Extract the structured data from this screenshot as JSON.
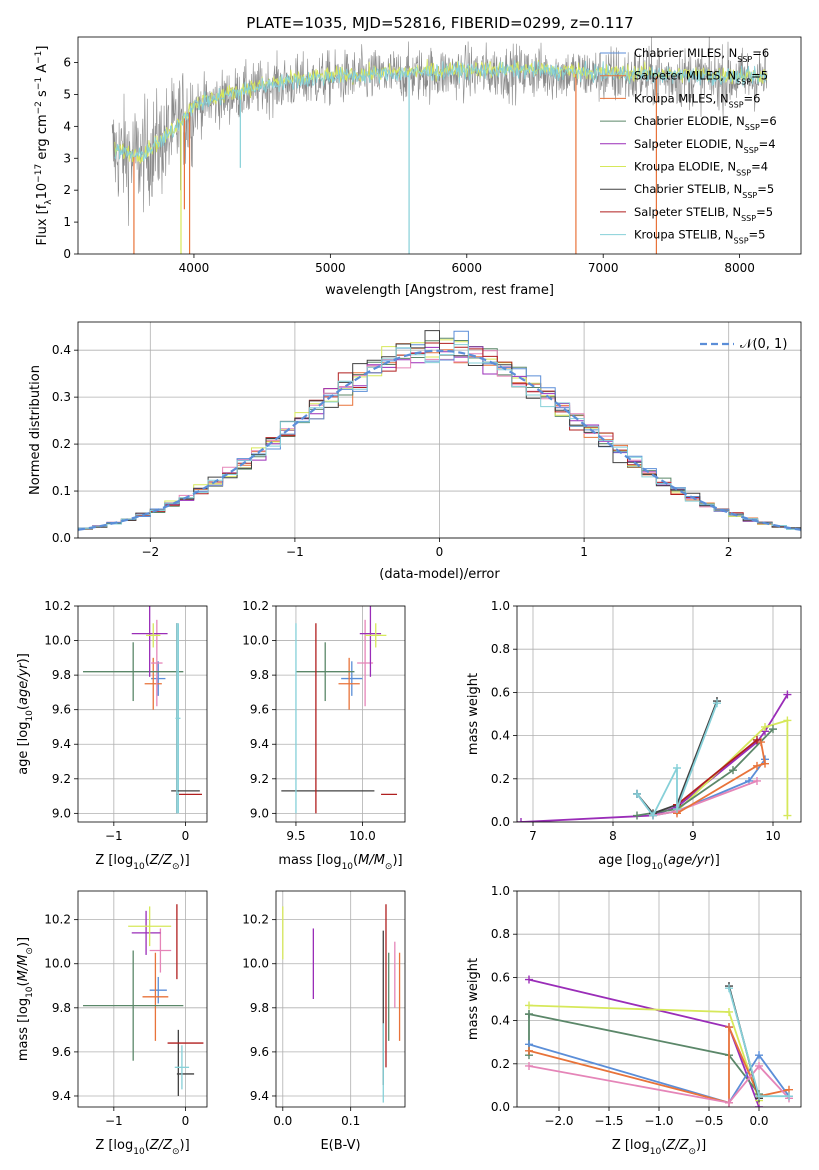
{
  "title": "PLATE=1035, MJD=52816, FIBERID=0299, z=0.117",
  "colors": {
    "chabrier_miles": "#5b8ed8",
    "salpeter_miles": "#e8733a",
    "kroupa_miles": "#e8733a",
    "chabrier_elodie": "#5b8769",
    "salpeter_elodie": "#9a2db8",
    "kroupa_elodie": "#d6e85a",
    "chabrier_stelib": "#404040",
    "salpeter_stelib": "#b01f1f",
    "kroupa_stelib": "#86d0d8",
    "pink": "#e585b8",
    "spectrum": "#8a8a8a",
    "normal": "#5b8ed8"
  },
  "chart_data": [
    {
      "id": "spectrum",
      "type": "line",
      "xlabel": "wavelength [Angstrom, rest frame]",
      "ylabel": "Flux [f_λ 10^-17 erg cm^-2 s^-1 A^-1]",
      "xlim": [
        3150,
        8450
      ],
      "ylim": [
        0,
        6.8
      ],
      "xticks": [
        4000,
        5000,
        6000,
        7000,
        8000
      ],
      "yticks": [
        0,
        1,
        2,
        3,
        4,
        5,
        6
      ],
      "legend_position": "top-right",
      "legend": [
        {
          "label": "Chabrier MILES, N_SSP=6",
          "color": "#5b8ed8"
        },
        {
          "label": "Salpeter MILES, N_SSP=5",
          "color": "#e8733a"
        },
        {
          "label": "Kroupa MILES, N_SSP=6",
          "color": "#e8733a"
        },
        {
          "label": "Chabrier ELODIE, N_SSP=6",
          "color": "#5b8769"
        },
        {
          "label": "Salpeter ELODIE, N_SSP=4",
          "color": "#9a2db8"
        },
        {
          "label": "Kroupa ELODIE, N_SSP=4",
          "color": "#d6e85a"
        },
        {
          "label": "Chabrier STELIB, N_SSP=5",
          "color": "#404040"
        },
        {
          "label": "Salpeter STELIB, N_SSP=5",
          "color": "#b01f1f"
        },
        {
          "label": "Kroupa STELIB, N_SSP=5",
          "color": "#86d0d8"
        }
      ],
      "continuum_x": [
        3400,
        3600,
        3800,
        4000,
        4300,
        4600,
        5000,
        5500,
        6000,
        6500,
        7000,
        7500,
        8000,
        8200
      ],
      "continuum_y": [
        3.2,
        3.0,
        3.6,
        4.6,
        5.0,
        5.3,
        5.5,
        5.6,
        5.7,
        5.7,
        5.6,
        5.55,
        5.5,
        5.5
      ],
      "dips": [
        {
          "x": 3560,
          "y": 0
        },
        {
          "x": 3905,
          "y": 0
        },
        {
          "x": 3930,
          "y": 1.4
        },
        {
          "x": 3968,
          "y": 0
        },
        {
          "x": 4340,
          "y": 2.7
        },
        {
          "x": 5577,
          "y": 0
        },
        {
          "x": 6800,
          "y": 0
        },
        {
          "x": 7390,
          "y": 0
        }
      ]
    },
    {
      "id": "residuals",
      "type": "histogram",
      "xlabel": "(data-model)/error",
      "ylabel": "Normed distribution",
      "xlim": [
        -2.5,
        2.5
      ],
      "ylim": [
        0,
        0.46
      ],
      "xticks": [
        -2,
        -1,
        0,
        1,
        2
      ],
      "yticks": [
        0.0,
        0.1,
        0.2,
        0.3,
        0.4
      ],
      "grid": true,
      "legend_position": "top-right",
      "normal_label": "𝒩(0, 1)",
      "bin_width": 0.1
    },
    {
      "id": "z_age",
      "type": "errorbar",
      "xlabel": "Z [log10(Z/Z⊙)]",
      "ylabel": "age [log10(age/yr)]",
      "xlim": [
        -1.5,
        0.3
      ],
      "ylim": [
        8.95,
        10.2
      ],
      "xticks": [
        -1,
        0
      ],
      "yticks": [
        9.0,
        9.2,
        9.4,
        9.6,
        9.8,
        10.0,
        10.2
      ],
      "grid": true,
      "points": [
        {
          "x": -0.38,
          "xerr": 0.1,
          "y": 9.78,
          "yerr": 0.1,
          "color": "#5b8ed8"
        },
        {
          "x": -0.45,
          "xerr": 0.12,
          "y": 9.75,
          "yerr": 0.15,
          "color": "#e8733a"
        },
        {
          "x": -0.4,
          "xerr": 0.08,
          "y": 9.87,
          "yerr": 0.25,
          "color": "#e585b8"
        },
        {
          "x": -0.73,
          "xerr": 0.7,
          "y": 9.82,
          "yerr": 0.17,
          "color": "#5b8769"
        },
        {
          "x": -0.5,
          "xerr": 0.25,
          "y": 10.04,
          "yerr": 0.25,
          "color": "#9a2db8"
        },
        {
          "x": -0.45,
          "xerr": 0.1,
          "y": 10.03,
          "yerr": 0.07,
          "color": "#d6e85a"
        },
        {
          "x": -0.12,
          "xerr": 0.0,
          "y": 9.55,
          "yerr": 0.55,
          "color": "#404040"
        },
        {
          "x": 0.05,
          "xerr": 0.18,
          "y": 9.11,
          "yerr": 0.0,
          "color": "#b01f1f"
        },
        {
          "x": -0.1,
          "xerr": 0.03,
          "y": 9.55,
          "yerr": 0.55,
          "color": "#86d0d8"
        },
        {
          "x": 0.0,
          "xerr": 0.2,
          "y": 9.13,
          "yerr": 0.0,
          "color": "#404040"
        },
        {
          "x": -0.12,
          "xerr": 0.02,
          "y": 9.55,
          "yerr": 0.55,
          "color": "#86d0d8"
        }
      ]
    },
    {
      "id": "mass_age",
      "type": "errorbar",
      "xlabel": "mass [log10(M/M⊙)]",
      "ylabel": "",
      "xlim": [
        9.35,
        10.32
      ],
      "ylim": [
        8.95,
        10.2
      ],
      "xticks": [
        9.5,
        10.0
      ],
      "yticks": [
        9.0,
        9.2,
        9.4,
        9.6,
        9.8,
        10.0,
        10.2
      ],
      "grid": true,
      "points": [
        {
          "x": 9.92,
          "xerr": 0.08,
          "y": 9.78,
          "yerr": 0.1,
          "color": "#5b8ed8"
        },
        {
          "x": 9.9,
          "xerr": 0.08,
          "y": 9.75,
          "yerr": 0.15,
          "color": "#e8733a"
        },
        {
          "x": 10.02,
          "xerr": 0.06,
          "y": 9.87,
          "yerr": 0.25,
          "color": "#e585b8"
        },
        {
          "x": 9.72,
          "xerr": 0.22,
          "y": 9.82,
          "yerr": 0.17,
          "color": "#5b8769"
        },
        {
          "x": 10.06,
          "xerr": 0.08,
          "y": 10.04,
          "yerr": 0.25,
          "color": "#9a2db8"
        },
        {
          "x": 10.1,
          "xerr": 0.08,
          "y": 10.03,
          "yerr": 0.07,
          "color": "#d6e85a"
        },
        {
          "x": 9.74,
          "xerr": 0.35,
          "y": 9.13,
          "yerr": 0.0,
          "color": "#404040"
        },
        {
          "x": 9.65,
          "xerr": 0.0,
          "y": 9.55,
          "yerr": 0.55,
          "color": "#b01f1f"
        },
        {
          "x": 9.5,
          "xerr": 0.0,
          "y": 9.55,
          "yerr": 0.55,
          "color": "#86d0d8"
        },
        {
          "x": 10.2,
          "xerr": 0.06,
          "y": 9.11,
          "yerr": 0.0,
          "color": "#b01f1f"
        }
      ]
    },
    {
      "id": "age_weight",
      "type": "line",
      "xlabel": "age [log10(age/yr)]",
      "ylabel": "mass weight",
      "xlim": [
        6.8,
        10.35
      ],
      "ylim": [
        0,
        1.0
      ],
      "xticks": [
        7,
        8,
        9,
        10
      ],
      "yticks": [
        0.0,
        0.2,
        0.4,
        0.6,
        0.8,
        1.0
      ],
      "grid": true,
      "series": [
        {
          "color": "#9a2db8",
          "points": [
            [
              6.85,
              0.0
            ],
            [
              8.5,
              0.03
            ],
            [
              8.8,
              0.07
            ],
            [
              9.8,
              0.37
            ],
            [
              9.9,
              0.42
            ],
            [
              10.18,
              0.59
            ]
          ]
        },
        {
          "color": "#d6e85a",
          "points": [
            [
              8.5,
              0.03
            ],
            [
              8.8,
              0.05
            ],
            [
              9.9,
              0.44
            ],
            [
              10.18,
              0.47
            ],
            [
              10.18,
              0.03
            ]
          ]
        },
        {
          "color": "#5b8769",
          "points": [
            [
              8.3,
              0.03
            ],
            [
              8.8,
              0.06
            ],
            [
              9.5,
              0.24
            ],
            [
              10.0,
              0.43
            ]
          ]
        },
        {
          "color": "#5b8ed8",
          "points": [
            [
              8.3,
              0.13
            ],
            [
              8.5,
              0.03
            ],
            [
              8.8,
              0.05
            ],
            [
              9.7,
              0.19
            ],
            [
              9.9,
              0.29
            ]
          ]
        },
        {
          "color": "#e585b8",
          "points": [
            [
              8.5,
              0.03
            ],
            [
              8.8,
              0.05
            ],
            [
              9.8,
              0.19
            ]
          ]
        },
        {
          "color": "#e8733a",
          "points": [
            [
              8.8,
              0.04
            ],
            [
              9.8,
              0.26
            ],
            [
              9.9,
              0.27
            ],
            [
              9.85,
              0.37
            ]
          ]
        },
        {
          "color": "#404040",
          "points": [
            [
              8.3,
              0.13
            ],
            [
              8.5,
              0.04
            ],
            [
              8.8,
              0.08
            ],
            [
              9.3,
              0.56
            ]
          ]
        },
        {
          "color": "#b01f1f",
          "points": [
            [
              8.8,
              0.08
            ],
            [
              9.8,
              0.38
            ]
          ]
        },
        {
          "color": "#86d0d8",
          "points": [
            [
              8.3,
              0.13
            ],
            [
              8.5,
              0.03
            ],
            [
              8.8,
              0.25
            ],
            [
              8.8,
              0.06
            ],
            [
              9.3,
              0.55
            ]
          ]
        }
      ]
    },
    {
      "id": "z_mass",
      "type": "errorbar",
      "xlabel": "Z [log10(Z/Z⊙)]",
      "ylabel": "mass [log10(M/M⊙)]",
      "xlim": [
        -1.5,
        0.3
      ],
      "ylim": [
        9.35,
        10.33
      ],
      "xticks": [
        -1,
        0
      ],
      "yticks": [
        9.4,
        9.6,
        9.8,
        10.0,
        10.2
      ],
      "grid": true,
      "points": [
        {
          "x": -0.38,
          "xerr": 0.12,
          "y": 9.88,
          "yerr": 0.06,
          "color": "#5b8ed8"
        },
        {
          "x": -0.42,
          "xerr": 0.18,
          "y": 9.85,
          "yerr": 0.2,
          "color": "#e8733a"
        },
        {
          "x": -0.35,
          "xerr": 0.15,
          "y": 10.06,
          "yerr": 0.1,
          "color": "#e585b8"
        },
        {
          "x": -0.73,
          "xerr": 0.7,
          "y": 9.81,
          "yerr": 0.25,
          "color": "#5b8769"
        },
        {
          "x": -0.55,
          "xerr": 0.2,
          "y": 10.14,
          "yerr": 0.1,
          "color": "#9a2db8"
        },
        {
          "x": -0.5,
          "xerr": 0.3,
          "y": 10.17,
          "yerr": 0.09,
          "color": "#d6e85a"
        },
        {
          "x": 0.0,
          "xerr": 0.12,
          "y": 9.5,
          "yerr": 0.0,
          "color": "#404040"
        },
        {
          "x": -0.1,
          "xerr": 0.0,
          "y": 9.55,
          "yerr": 0.15,
          "color": "#404040"
        },
        {
          "x": 0.0,
          "xerr": 0.25,
          "y": 9.64,
          "yerr": 0.0,
          "color": "#b01f1f"
        },
        {
          "x": -0.12,
          "xerr": 0.0,
          "y": 10.1,
          "yerr": 0.17,
          "color": "#b01f1f"
        },
        {
          "x": -0.05,
          "xerr": 0.1,
          "y": 9.53,
          "yerr": 0.1,
          "color": "#86d0d8"
        }
      ]
    },
    {
      "id": "ebv_mass",
      "type": "errorbar",
      "xlabel": "E(B-V)",
      "ylabel": "",
      "xlim": [
        -0.01,
        0.18
      ],
      "ylim": [
        9.35,
        10.33
      ],
      "xticks": [
        0.0,
        0.1
      ],
      "yticks": [
        9.4,
        9.6,
        9.8,
        10.0,
        10.2
      ],
      "grid": true,
      "points": [
        {
          "x": 0.0,
          "xerr": 0.0,
          "y": 10.14,
          "yerr": 0.12,
          "color": "#d6e85a"
        },
        {
          "x": 0.045,
          "xerr": 0.0,
          "y": 10.0,
          "yerr": 0.16,
          "color": "#9a2db8"
        },
        {
          "x": 0.148,
          "xerr": 0.0,
          "y": 9.8,
          "yerr": 0.35,
          "color": "#404040"
        },
        {
          "x": 0.152,
          "xerr": 0.0,
          "y": 9.9,
          "yerr": 0.37,
          "color": "#b01f1f"
        },
        {
          "x": 0.156,
          "xerr": 0.0,
          "y": 9.85,
          "yerr": 0.2,
          "color": "#5b8769"
        },
        {
          "x": 0.165,
          "xerr": 0.0,
          "y": 9.95,
          "yerr": 0.15,
          "color": "#e585b8"
        },
        {
          "x": 0.172,
          "xerr": 0.0,
          "y": 9.85,
          "yerr": 0.2,
          "color": "#e8733a"
        },
        {
          "x": 0.148,
          "xerr": 0.0,
          "y": 9.55,
          "yerr": 0.18,
          "color": "#86d0d8"
        }
      ]
    },
    {
      "id": "z_weight",
      "type": "line",
      "xlabel": "Z [log10(Z/Z⊙)]",
      "ylabel": "mass weight",
      "xlim": [
        -2.42,
        0.42
      ],
      "ylim": [
        0,
        1.0
      ],
      "xticks": [
        -2.0,
        -1.5,
        -1.0,
        -0.5,
        0.0
      ],
      "yticks": [
        0.0,
        0.2,
        0.4,
        0.6,
        0.8,
        1.0
      ],
      "grid": true,
      "series": [
        {
          "color": "#9a2db8",
          "points": [
            [
              -2.3,
              0.59
            ],
            [
              -0.3,
              0.37
            ],
            [
              0.0,
              0.0
            ]
          ]
        },
        {
          "color": "#d6e85a",
          "points": [
            [
              -2.3,
              0.47
            ],
            [
              -0.3,
              0.44
            ],
            [
              0.0,
              0.03
            ]
          ]
        },
        {
          "color": "#5b8769",
          "points": [
            [
              -2.3,
              0.43
            ],
            [
              -0.3,
              0.24
            ],
            [
              0.0,
              0.06
            ]
          ]
        },
        {
          "color": "#5b8769",
          "points": [
            [
              -2.3,
              0.43
            ],
            [
              -2.3,
              0.24
            ]
          ]
        },
        {
          "color": "#5b8ed8",
          "points": [
            [
              -2.3,
              0.29
            ],
            [
              -0.3,
              0.02
            ],
            [
              0.0,
              0.24
            ],
            [
              0.3,
              0.05
            ]
          ]
        },
        {
          "color": "#e8733a",
          "points": [
            [
              -2.3,
              0.26
            ],
            [
              -0.3,
              0.02
            ],
            [
              -0.3,
              0.37
            ],
            [
              0.0,
              0.05
            ],
            [
              0.3,
              0.08
            ]
          ]
        },
        {
          "color": "#e585b8",
          "points": [
            [
              -2.3,
              0.19
            ],
            [
              -0.3,
              0.02
            ],
            [
              0.0,
              0.19
            ],
            [
              0.3,
              0.04
            ]
          ]
        },
        {
          "color": "#404040",
          "points": [
            [
              -0.3,
              0.56
            ],
            [
              0.0,
              0.04
            ]
          ]
        },
        {
          "color": "#86d0d8",
          "points": [
            [
              -0.3,
              0.55
            ],
            [
              0.0,
              0.05
            ],
            [
              0.3,
              0.05
            ]
          ]
        }
      ]
    }
  ]
}
